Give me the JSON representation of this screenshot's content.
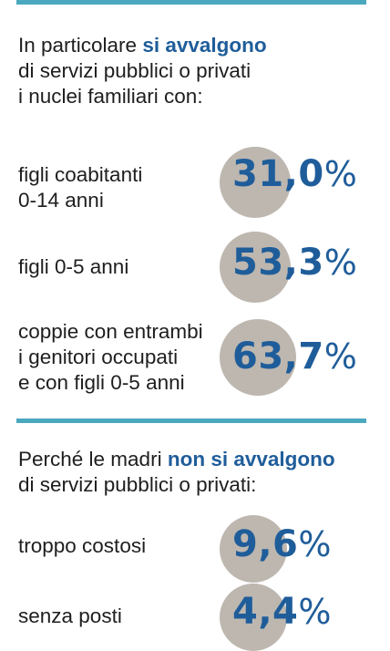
{
  "section1": {
    "heading_pre": "In particolare",
    "heading_highlight": "si avvalgono",
    "heading_line2": "di servizi pubblici o privati",
    "heading_line3": "i nuclei familiari con:",
    "items": [
      {
        "label_lines": [
          "figli coabitanti",
          "0-14 anni"
        ],
        "value": "31,0",
        "unit": "%"
      },
      {
        "label_lines": [
          "figli 0-5 anni"
        ],
        "value": "53,3",
        "unit": "%"
      },
      {
        "label_lines": [
          "coppie con entrambi",
          "i genitori occupati",
          "e con figli 0-5 anni"
        ],
        "value": "63,7",
        "unit": "%"
      }
    ]
  },
  "section2": {
    "heading_pre": "Perché le madri",
    "heading_highlight": "non si avvalgono",
    "heading_line2": "di servizi pubblici o privati:",
    "items": [
      {
        "label_lines": [
          "troppo costosi"
        ],
        "value": "9,6",
        "unit": "%"
      },
      {
        "label_lines": [
          "senza posti"
        ],
        "value": "4,4",
        "unit": "%"
      }
    ]
  },
  "colors": {
    "accent_blue": "#1f5d9a",
    "rule_teal": "#4aa9bf",
    "circle_grey": "#bdb7b0"
  }
}
